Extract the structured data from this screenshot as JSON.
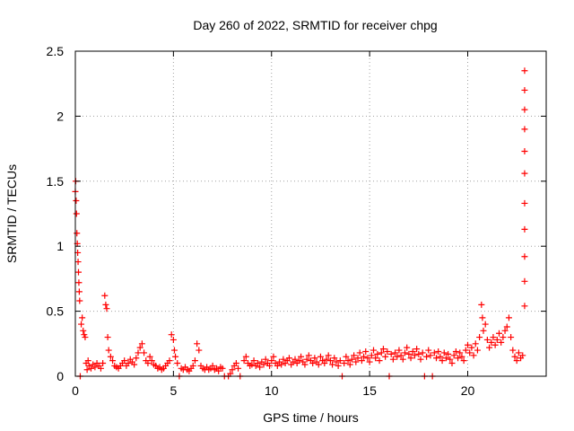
{
  "chart_data": {
    "type": "scatter",
    "title": "Day 260 of 2022, SRMTID for receiver chpg",
    "xlabel": "GPS time / hours",
    "ylabel": "SRMTID / TECUs",
    "xlim": [
      0,
      24
    ],
    "ylim": [
      0,
      2.5
    ],
    "xticks": [
      0,
      5,
      10,
      15,
      20
    ],
    "yticks": [
      0,
      0.5,
      1,
      1.5,
      2,
      2.5
    ],
    "ytick_labels": [
      "0",
      "0.5",
      "1",
      "1.5",
      "2",
      "2.5"
    ],
    "grid": true,
    "marker": "+",
    "color": "#ff0000",
    "series": [
      {
        "name": "SRMTID",
        "points": [
          [
            0.0,
            1.42
          ],
          [
            0.02,
            1.5
          ],
          [
            0.04,
            1.35
          ],
          [
            0.06,
            1.25
          ],
          [
            0.08,
            1.1
          ],
          [
            0.1,
            1.02
          ],
          [
            0.12,
            0.95
          ],
          [
            0.14,
            0.88
          ],
          [
            0.16,
            0.8
          ],
          [
            0.18,
            0.72
          ],
          [
            0.2,
            0.65
          ],
          [
            0.22,
            0.58
          ],
          [
            0.25,
            0.0
          ],
          [
            0.3,
            0.4
          ],
          [
            0.35,
            0.45
          ],
          [
            0.4,
            0.35
          ],
          [
            0.45,
            0.32
          ],
          [
            0.5,
            0.3
          ],
          [
            0.55,
            0.1
          ],
          [
            0.6,
            0.05
          ],
          [
            0.65,
            0.12
          ],
          [
            0.7,
            0.08
          ],
          [
            0.8,
            0.06
          ],
          [
            0.9,
            0.09
          ],
          [
            1.0,
            0.07
          ],
          [
            1.1,
            0.1
          ],
          [
            1.2,
            0.08
          ],
          [
            1.3,
            0.06
          ],
          [
            1.4,
            0.1
          ],
          [
            1.5,
            0.62
          ],
          [
            1.55,
            0.55
          ],
          [
            1.6,
            0.52
          ],
          [
            1.65,
            0.3
          ],
          [
            1.7,
            0.2
          ],
          [
            1.8,
            0.15
          ],
          [
            1.9,
            0.12
          ],
          [
            2.0,
            0.08
          ],
          [
            2.1,
            0.07
          ],
          [
            2.2,
            0.06
          ],
          [
            2.3,
            0.08
          ],
          [
            2.4,
            0.1
          ],
          [
            2.5,
            0.12
          ],
          [
            2.6,
            0.08
          ],
          [
            2.7,
            0.1
          ],
          [
            2.8,
            0.13
          ],
          [
            2.9,
            0.11
          ],
          [
            3.0,
            0.09
          ],
          [
            3.1,
            0.14
          ],
          [
            3.2,
            0.18
          ],
          [
            3.3,
            0.22
          ],
          [
            3.4,
            0.25
          ],
          [
            3.5,
            0.18
          ],
          [
            3.6,
            0.12
          ],
          [
            3.7,
            0.1
          ],
          [
            3.8,
            0.15
          ],
          [
            3.9,
            0.12
          ],
          [
            4.0,
            0.09
          ],
          [
            4.1,
            0.08
          ],
          [
            4.2,
            0.06
          ],
          [
            4.3,
            0.07
          ],
          [
            4.4,
            0.05
          ],
          [
            4.5,
            0.06
          ],
          [
            4.6,
            0.08
          ],
          [
            4.7,
            0.1
          ],
          [
            4.8,
            0.12
          ],
          [
            4.9,
            0.32
          ],
          [
            5.0,
            0.28
          ],
          [
            5.05,
            0.2
          ],
          [
            5.1,
            0.15
          ],
          [
            5.2,
            0.1
          ],
          [
            5.3,
            0.0
          ],
          [
            5.4,
            0.06
          ],
          [
            5.5,
            0.05
          ],
          [
            5.6,
            0.07
          ],
          [
            5.7,
            0.05
          ],
          [
            5.8,
            0.04
          ],
          [
            5.9,
            0.06
          ],
          [
            6.0,
            0.08
          ],
          [
            6.1,
            0.12
          ],
          [
            6.2,
            0.25
          ],
          [
            6.3,
            0.2
          ],
          [
            6.4,
            0.08
          ],
          [
            6.5,
            0.06
          ],
          [
            6.6,
            0.05
          ],
          [
            6.7,
            0.07
          ],
          [
            6.8,
            0.05
          ],
          [
            6.9,
            0.06
          ],
          [
            7.0,
            0.08
          ],
          [
            7.1,
            0.05
          ],
          [
            7.2,
            0.06
          ],
          [
            7.3,
            0.04
          ],
          [
            7.4,
            0.07
          ],
          [
            7.5,
            0.06
          ],
          [
            7.6,
            0.0
          ],
          [
            7.8,
            0.0
          ],
          [
            7.9,
            0.02
          ],
          [
            8.0,
            0.05
          ],
          [
            8.1,
            0.08
          ],
          [
            8.2,
            0.1
          ],
          [
            8.3,
            0.06
          ],
          [
            8.4,
            0.0
          ],
          [
            8.6,
            0.12
          ],
          [
            8.7,
            0.15
          ],
          [
            8.8,
            0.1
          ],
          [
            8.9,
            0.08
          ],
          [
            9.0,
            0.09
          ],
          [
            9.1,
            0.12
          ],
          [
            9.2,
            0.08
          ],
          [
            9.3,
            0.1
          ],
          [
            9.4,
            0.07
          ],
          [
            9.5,
            0.11
          ],
          [
            9.6,
            0.09
          ],
          [
            9.7,
            0.13
          ],
          [
            9.8,
            0.1
          ],
          [
            9.9,
            0.08
          ],
          [
            10.0,
            0.12
          ],
          [
            10.1,
            0.15
          ],
          [
            10.2,
            0.1
          ],
          [
            10.3,
            0.08
          ],
          [
            10.4,
            0.11
          ],
          [
            10.5,
            0.09
          ],
          [
            10.6,
            0.13
          ],
          [
            10.7,
            0.1
          ],
          [
            10.8,
            0.12
          ],
          [
            10.9,
            0.14
          ],
          [
            11.0,
            0.09
          ],
          [
            11.1,
            0.11
          ],
          [
            11.2,
            0.13
          ],
          [
            11.3,
            0.1
          ],
          [
            11.4,
            0.12
          ],
          [
            11.5,
            0.15
          ],
          [
            11.6,
            0.11
          ],
          [
            11.7,
            0.09
          ],
          [
            11.8,
            0.13
          ],
          [
            11.9,
            0.16
          ],
          [
            12.0,
            0.12
          ],
          [
            12.1,
            0.1
          ],
          [
            12.2,
            0.14
          ],
          [
            12.3,
            0.11
          ],
          [
            12.4,
            0.09
          ],
          [
            12.5,
            0.15
          ],
          [
            12.6,
            0.12
          ],
          [
            12.7,
            0.1
          ],
          [
            12.8,
            0.13
          ],
          [
            12.9,
            0.16
          ],
          [
            13.0,
            0.12
          ],
          [
            13.1,
            0.09
          ],
          [
            13.2,
            0.14
          ],
          [
            13.3,
            0.11
          ],
          [
            13.4,
            0.08
          ],
          [
            13.5,
            0.12
          ],
          [
            13.6,
            0.0
          ],
          [
            13.7,
            0.1
          ],
          [
            13.8,
            0.15
          ],
          [
            13.9,
            0.12
          ],
          [
            14.0,
            0.09
          ],
          [
            14.1,
            0.13
          ],
          [
            14.2,
            0.16
          ],
          [
            14.3,
            0.11
          ],
          [
            14.4,
            0.14
          ],
          [
            14.5,
            0.18
          ],
          [
            14.6,
            0.12
          ],
          [
            14.7,
            0.15
          ],
          [
            14.8,
            0.19
          ],
          [
            14.9,
            0.14
          ],
          [
            15.0,
            0.11
          ],
          [
            15.1,
            0.16
          ],
          [
            15.2,
            0.2
          ],
          [
            15.3,
            0.14
          ],
          [
            15.4,
            0.17
          ],
          [
            15.5,
            0.12
          ],
          [
            15.6,
            0.18
          ],
          [
            15.7,
            0.21
          ],
          [
            15.8,
            0.15
          ],
          [
            15.9,
            0.19
          ],
          [
            16.0,
            0.0
          ],
          [
            16.1,
            0.17
          ],
          [
            16.2,
            0.13
          ],
          [
            16.3,
            0.18
          ],
          [
            16.4,
            0.15
          ],
          [
            16.5,
            0.2
          ],
          [
            16.6,
            0.16
          ],
          [
            16.7,
            0.13
          ],
          [
            16.8,
            0.18
          ],
          [
            16.9,
            0.22
          ],
          [
            17.0,
            0.17
          ],
          [
            17.1,
            0.14
          ],
          [
            17.2,
            0.19
          ],
          [
            17.3,
            0.16
          ],
          [
            17.4,
            0.21
          ],
          [
            17.5,
            0.17
          ],
          [
            17.6,
            0.13
          ],
          [
            17.7,
            0.18
          ],
          [
            17.8,
            0.0
          ],
          [
            17.9,
            0.15
          ],
          [
            18.0,
            0.2
          ],
          [
            18.1,
            0.16
          ],
          [
            18.2,
            0.0
          ],
          [
            18.3,
            0.18
          ],
          [
            18.4,
            0.14
          ],
          [
            18.5,
            0.19
          ],
          [
            18.6,
            0.15
          ],
          [
            18.7,
            0.12
          ],
          [
            18.8,
            0.18
          ],
          [
            18.9,
            0.14
          ],
          [
            19.0,
            0.17
          ],
          [
            19.1,
            0.13
          ],
          [
            19.2,
            0.1
          ],
          [
            19.3,
            0.16
          ],
          [
            19.4,
            0.19
          ],
          [
            19.5,
            0.14
          ],
          [
            19.6,
            0.18
          ],
          [
            19.7,
            0.15
          ],
          [
            19.8,
            0.12
          ],
          [
            19.9,
            0.2
          ],
          [
            20.0,
            0.24
          ],
          [
            20.1,
            0.18
          ],
          [
            20.2,
            0.22
          ],
          [
            20.3,
            0.16
          ],
          [
            20.4,
            0.25
          ],
          [
            20.5,
            0.2
          ],
          [
            20.6,
            0.3
          ],
          [
            20.7,
            0.55
          ],
          [
            20.75,
            0.45
          ],
          [
            20.8,
            0.35
          ],
          [
            20.9,
            0.4
          ],
          [
            21.0,
            0.28
          ],
          [
            21.1,
            0.22
          ],
          [
            21.2,
            0.26
          ],
          [
            21.3,
            0.3
          ],
          [
            21.4,
            0.24
          ],
          [
            21.5,
            0.28
          ],
          [
            21.6,
            0.33
          ],
          [
            21.7,
            0.26
          ],
          [
            21.8,
            0.3
          ],
          [
            21.9,
            0.35
          ],
          [
            22.0,
            0.38
          ],
          [
            22.1,
            0.45
          ],
          [
            22.2,
            0.3
          ],
          [
            22.3,
            0.2
          ],
          [
            22.4,
            0.15
          ],
          [
            22.5,
            0.12
          ],
          [
            22.6,
            0.18
          ],
          [
            22.7,
            0.14
          ],
          [
            22.8,
            0.16
          ],
          [
            22.9,
            2.35
          ],
          [
            22.9,
            2.2
          ],
          [
            22.9,
            2.05
          ],
          [
            22.9,
            1.9
          ],
          [
            22.9,
            1.73
          ],
          [
            22.9,
            1.56
          ],
          [
            22.9,
            1.33
          ],
          [
            22.9,
            1.13
          ],
          [
            22.9,
            0.92
          ],
          [
            22.9,
            0.73
          ],
          [
            22.9,
            0.54
          ]
        ]
      }
    ]
  }
}
